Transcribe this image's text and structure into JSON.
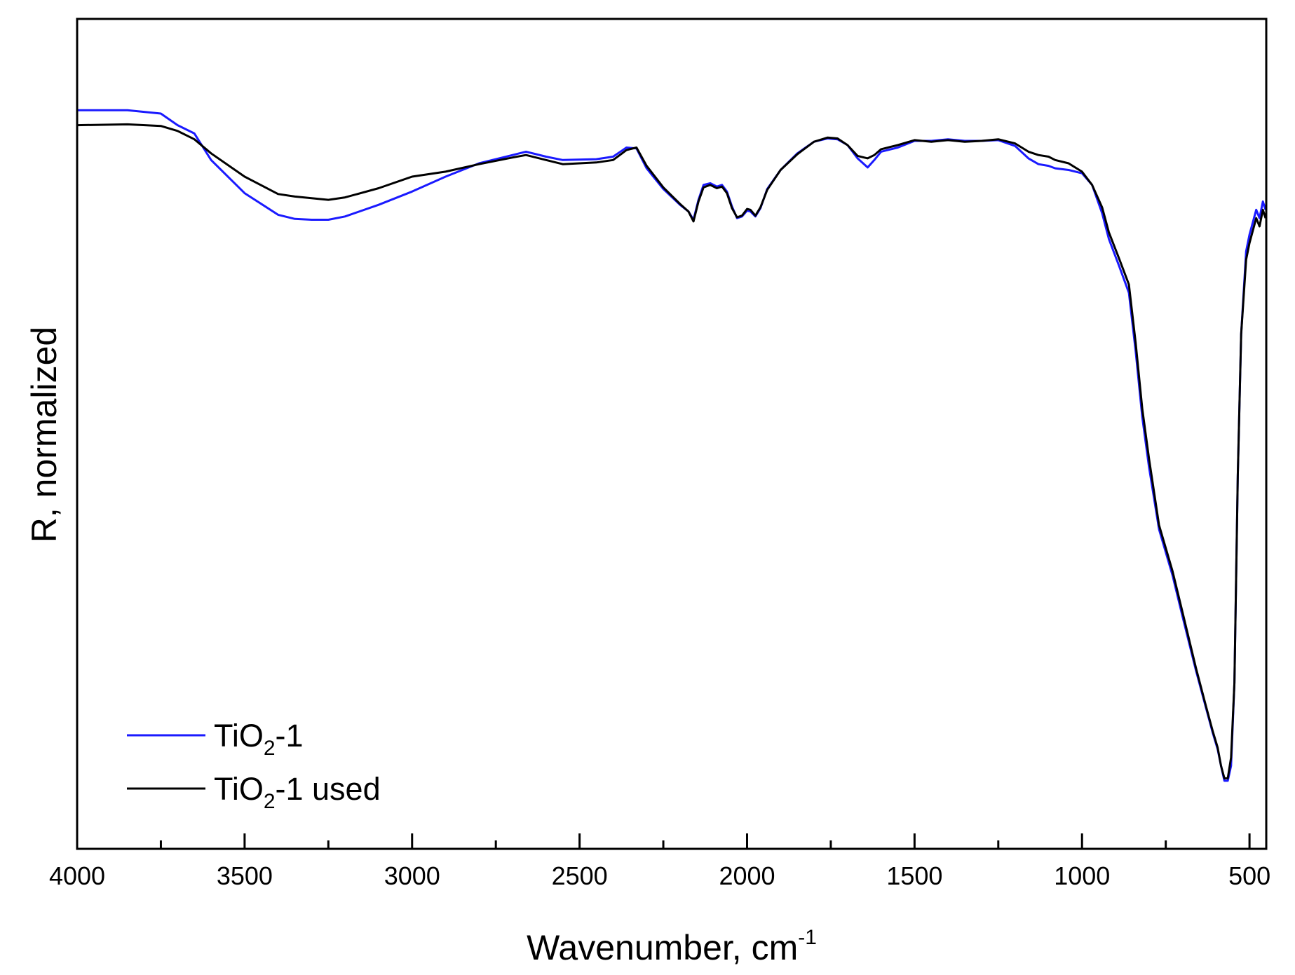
{
  "chart_data": {
    "type": "line",
    "xlabel": "Wavenumber, cm",
    "xlabel_sup": "-1",
    "ylabel": "R, normalized",
    "xlim": [
      4000,
      450
    ],
    "ylim": [
      0,
      1
    ],
    "x_ticks": [
      4000,
      3500,
      3000,
      2500,
      2000,
      1500,
      1000,
      500
    ],
    "x_minor_ticks": [
      3750,
      3250,
      2750,
      2250,
      1750,
      1250,
      750
    ],
    "grid": false,
    "legend_position": "bottom-left",
    "series": [
      {
        "name": "TiO2-1",
        "name_base": "TiO",
        "name_sub": "2",
        "name_suffix": "-1",
        "color": "#1a1aff",
        "points": [
          [
            4000,
            0.89
          ],
          [
            3850,
            0.89
          ],
          [
            3750,
            0.886
          ],
          [
            3700,
            0.872
          ],
          [
            3650,
            0.862
          ],
          [
            3600,
            0.83
          ],
          [
            3500,
            0.79
          ],
          [
            3400,
            0.764
          ],
          [
            3350,
            0.759
          ],
          [
            3300,
            0.758
          ],
          [
            3250,
            0.758
          ],
          [
            3200,
            0.762
          ],
          [
            3100,
            0.776
          ],
          [
            3000,
            0.792
          ],
          [
            2900,
            0.81
          ],
          [
            2800,
            0.826
          ],
          [
            2700,
            0.836
          ],
          [
            2660,
            0.84
          ],
          [
            2600,
            0.834
          ],
          [
            2550,
            0.83
          ],
          [
            2450,
            0.831
          ],
          [
            2400,
            0.834
          ],
          [
            2360,
            0.845
          ],
          [
            2330,
            0.844
          ],
          [
            2300,
            0.82
          ],
          [
            2250,
            0.795
          ],
          [
            2200,
            0.776
          ],
          [
            2175,
            0.768
          ],
          [
            2160,
            0.758
          ],
          [
            2145,
            0.782
          ],
          [
            2130,
            0.8
          ],
          [
            2110,
            0.802
          ],
          [
            2090,
            0.798
          ],
          [
            2075,
            0.8
          ],
          [
            2060,
            0.792
          ],
          [
            2045,
            0.774
          ],
          [
            2030,
            0.76
          ],
          [
            2015,
            0.762
          ],
          [
            2000,
            0.769
          ],
          [
            1990,
            0.768
          ],
          [
            1975,
            0.762
          ],
          [
            1960,
            0.772
          ],
          [
            1940,
            0.795
          ],
          [
            1900,
            0.818
          ],
          [
            1850,
            0.838
          ],
          [
            1800,
            0.852
          ],
          [
            1760,
            0.856
          ],
          [
            1730,
            0.855
          ],
          [
            1700,
            0.848
          ],
          [
            1670,
            0.832
          ],
          [
            1640,
            0.821
          ],
          [
            1620,
            0.83
          ],
          [
            1600,
            0.84
          ],
          [
            1550,
            0.845
          ],
          [
            1500,
            0.853
          ],
          [
            1450,
            0.853
          ],
          [
            1400,
            0.855
          ],
          [
            1350,
            0.853
          ],
          [
            1300,
            0.853
          ],
          [
            1250,
            0.854
          ],
          [
            1200,
            0.847
          ],
          [
            1160,
            0.832
          ],
          [
            1130,
            0.825
          ],
          [
            1100,
            0.823
          ],
          [
            1080,
            0.82
          ],
          [
            1040,
            0.818
          ],
          [
            1000,
            0.814
          ],
          [
            970,
            0.8
          ],
          [
            940,
            0.766
          ],
          [
            920,
            0.735
          ],
          [
            890,
            0.703
          ],
          [
            860,
            0.67
          ],
          [
            840,
            0.6
          ],
          [
            820,
            0.52
          ],
          [
            800,
            0.46
          ],
          [
            770,
            0.385
          ],
          [
            730,
            0.33
          ],
          [
            700,
            0.28
          ],
          [
            660,
            0.215
          ],
          [
            630,
            0.17
          ],
          [
            610,
            0.14
          ],
          [
            595,
            0.12
          ],
          [
            585,
            0.1
          ],
          [
            575,
            0.082
          ],
          [
            565,
            0.082
          ],
          [
            555,
            0.1
          ],
          [
            545,
            0.2
          ],
          [
            535,
            0.45
          ],
          [
            525,
            0.62
          ],
          [
            510,
            0.72
          ],
          [
            500,
            0.74
          ],
          [
            490,
            0.755
          ],
          [
            480,
            0.77
          ],
          [
            470,
            0.76
          ],
          [
            460,
            0.78
          ],
          [
            452,
            0.77
          ]
        ]
      },
      {
        "name": "TiO2-1 used",
        "name_base": "TiO",
        "name_sub": "2",
        "name_suffix": "-1 used",
        "color": "#000000",
        "points": [
          [
            4000,
            0.872
          ],
          [
            3850,
            0.873
          ],
          [
            3750,
            0.871
          ],
          [
            3700,
            0.865
          ],
          [
            3650,
            0.855
          ],
          [
            3600,
            0.838
          ],
          [
            3500,
            0.81
          ],
          [
            3400,
            0.789
          ],
          [
            3350,
            0.786
          ],
          [
            3300,
            0.784
          ],
          [
            3250,
            0.782
          ],
          [
            3200,
            0.785
          ],
          [
            3100,
            0.796
          ],
          [
            3000,
            0.81
          ],
          [
            2900,
            0.816
          ],
          [
            2800,
            0.825
          ],
          [
            2700,
            0.833
          ],
          [
            2660,
            0.836
          ],
          [
            2600,
            0.83
          ],
          [
            2550,
            0.825
          ],
          [
            2450,
            0.827
          ],
          [
            2400,
            0.83
          ],
          [
            2360,
            0.842
          ],
          [
            2330,
            0.845
          ],
          [
            2300,
            0.823
          ],
          [
            2250,
            0.797
          ],
          [
            2200,
            0.777
          ],
          [
            2175,
            0.768
          ],
          [
            2160,
            0.756
          ],
          [
            2145,
            0.78
          ],
          [
            2130,
            0.797
          ],
          [
            2110,
            0.8
          ],
          [
            2090,
            0.796
          ],
          [
            2075,
            0.798
          ],
          [
            2060,
            0.79
          ],
          [
            2045,
            0.772
          ],
          [
            2030,
            0.761
          ],
          [
            2015,
            0.763
          ],
          [
            2000,
            0.771
          ],
          [
            1990,
            0.77
          ],
          [
            1975,
            0.763
          ],
          [
            1960,
            0.773
          ],
          [
            1940,
            0.794
          ],
          [
            1900,
            0.818
          ],
          [
            1850,
            0.837
          ],
          [
            1800,
            0.852
          ],
          [
            1760,
            0.857
          ],
          [
            1730,
            0.856
          ],
          [
            1700,
            0.848
          ],
          [
            1670,
            0.835
          ],
          [
            1640,
            0.832
          ],
          [
            1620,
            0.836
          ],
          [
            1600,
            0.843
          ],
          [
            1550,
            0.848
          ],
          [
            1500,
            0.854
          ],
          [
            1450,
            0.852
          ],
          [
            1400,
            0.854
          ],
          [
            1350,
            0.852
          ],
          [
            1300,
            0.853
          ],
          [
            1250,
            0.855
          ],
          [
            1200,
            0.85
          ],
          [
            1160,
            0.84
          ],
          [
            1130,
            0.836
          ],
          [
            1100,
            0.834
          ],
          [
            1080,
            0.83
          ],
          [
            1040,
            0.826
          ],
          [
            1000,
            0.816
          ],
          [
            970,
            0.8
          ],
          [
            940,
            0.773
          ],
          [
            920,
            0.743
          ],
          [
            890,
            0.712
          ],
          [
            860,
            0.68
          ],
          [
            840,
            0.61
          ],
          [
            820,
            0.53
          ],
          [
            800,
            0.47
          ],
          [
            770,
            0.39
          ],
          [
            730,
            0.335
          ],
          [
            700,
            0.285
          ],
          [
            660,
            0.218
          ],
          [
            630,
            0.172
          ],
          [
            610,
            0.142
          ],
          [
            595,
            0.122
          ],
          [
            585,
            0.1
          ],
          [
            575,
            0.085
          ],
          [
            565,
            0.085
          ],
          [
            555,
            0.11
          ],
          [
            545,
            0.2
          ],
          [
            535,
            0.45
          ],
          [
            525,
            0.62
          ],
          [
            510,
            0.71
          ],
          [
            500,
            0.73
          ],
          [
            490,
            0.745
          ],
          [
            480,
            0.76
          ],
          [
            470,
            0.75
          ],
          [
            460,
            0.77
          ],
          [
            452,
            0.76
          ]
        ]
      }
    ]
  }
}
